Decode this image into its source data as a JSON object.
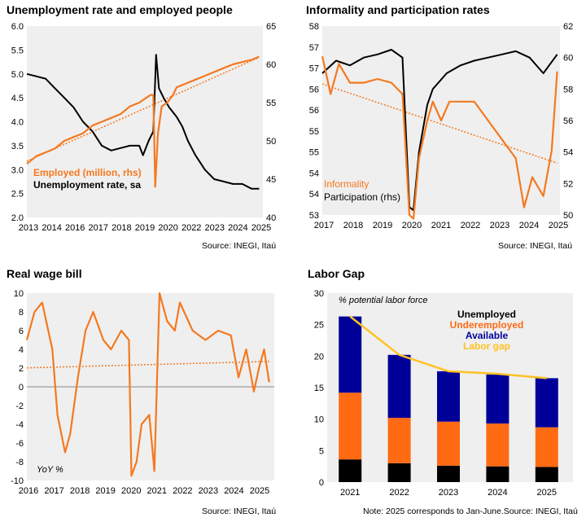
{
  "panels": {
    "p1": {
      "title": "Unemployment  rate and employed people",
      "source": "Source: INEGI, Itaú"
    },
    "p2": {
      "title": "Informality and participation rates",
      "source": "Source: INEGI, Itaú"
    },
    "p3": {
      "title": "Real wage bill",
      "source": "Source: INEGI, Itaú"
    },
    "p4": {
      "title": "Labor Gap",
      "source": "Note: 2025 corresponds to Jan-June.Source: INEGI, Itaú"
    }
  },
  "chart_data": [
    {
      "type": "line",
      "title": "Unemployment  rate and employed people",
      "x_tick_labels": [
        "2013",
        "2014",
        "2016",
        "2017",
        "2018",
        "2019",
        "2020",
        "2022",
        "2023",
        "2024",
        "2025"
      ],
      "ylim": [
        2.0,
        6.0
      ],
      "y_ticks": [
        "2.0",
        "2.5",
        "3.0",
        "3.5",
        "4.0",
        "4.5",
        "5.0",
        "5.5",
        "6.0"
      ],
      "y2lim": [
        40,
        65
      ],
      "y2_ticks": [
        "40",
        "45",
        "50",
        "55",
        "60",
        "65"
      ],
      "legend": [
        "Employed (million, rhs)",
        "Unemployment rate, sa"
      ],
      "colors": {
        "employed": "#F47920",
        "unemployment": "#000000"
      },
      "series": [
        {
          "name": "Employed (million, rhs)",
          "axis": "rhs",
          "trend": true,
          "x": [
            2013,
            2013.5,
            2014,
            2014.5,
            2015,
            2015.5,
            2016,
            2016.5,
            2017,
            2017.5,
            2018,
            2018.5,
            2019,
            2019.3,
            2019.6,
            2019.75,
            2019.85,
            2020,
            2020.2,
            2020.5,
            2020.8,
            2021,
            2021.5,
            2022,
            2022.5,
            2023,
            2023.5,
            2024,
            2024.5,
            2025,
            2025.4
          ],
          "values": [
            47,
            48,
            48.5,
            49,
            50,
            50.5,
            51,
            52,
            52.5,
            53,
            53.5,
            54.5,
            55,
            55.5,
            56,
            56,
            44,
            51,
            54.5,
            55,
            56,
            57,
            57.5,
            58,
            58.5,
            59,
            59.5,
            60,
            60.3,
            60.6,
            61
          ]
        },
        {
          "name": "Unemployment rate, sa",
          "axis": "lhs",
          "x": [
            2013,
            2013.5,
            2014,
            2014.5,
            2015,
            2015.5,
            2016,
            2016.5,
            2017,
            2017.5,
            2018,
            2018.5,
            2019,
            2019.2,
            2019.5,
            2019.75,
            2019.9,
            2020.05,
            2020.3,
            2020.6,
            2021,
            2021.3,
            2021.6,
            2022,
            2022.5,
            2023,
            2023.5,
            2024,
            2024.5,
            2025,
            2025.4
          ],
          "values": [
            5.0,
            4.95,
            4.9,
            4.7,
            4.5,
            4.3,
            4.0,
            3.8,
            3.5,
            3.4,
            3.45,
            3.5,
            3.5,
            3.3,
            3.6,
            3.8,
            5.4,
            4.7,
            4.5,
            4.3,
            4.1,
            3.9,
            3.6,
            3.3,
            3.0,
            2.8,
            2.75,
            2.7,
            2.7,
            2.6,
            2.6
          ]
        }
      ]
    },
    {
      "type": "line",
      "title": "Informality and participation rates",
      "x_tick_labels": [
        "2017",
        "2018",
        "2019",
        "2020",
        "2021",
        "2022",
        "2023",
        "2024",
        "2025"
      ],
      "ylim": [
        53,
        58
      ],
      "y_ticks": [
        "53",
        "54",
        "54",
        "55",
        "55",
        "56",
        "56",
        "57",
        "57",
        "58"
      ],
      "y2lim": [
        50,
        62
      ],
      "y2_ticks": [
        "50",
        "52",
        "54",
        "56",
        "58",
        "60",
        "62"
      ],
      "legend": [
        "Informality",
        "Participation (rhs)"
      ],
      "colors": {
        "informality": "#F47920",
        "participation": "#000000"
      },
      "series": [
        {
          "name": "Informality",
          "axis": "lhs",
          "trend": true,
          "x": [
            2017,
            2017.3,
            2017.6,
            2018,
            2018.5,
            2019,
            2019.5,
            2019.9,
            2020.15,
            2020.3,
            2020.5,
            2020.8,
            2021,
            2021.3,
            2021.6,
            2022,
            2022.5,
            2023,
            2023.5,
            2024,
            2024.3,
            2024.6,
            2025,
            2025.3,
            2025.5
          ],
          "values": [
            57.2,
            56.2,
            57.0,
            56.5,
            56.5,
            56.6,
            56.5,
            56.2,
            53.0,
            52.9,
            54.5,
            55.5,
            56.0,
            55.5,
            56.0,
            56.0,
            56.0,
            55.5,
            55.0,
            54.5,
            53.2,
            54.0,
            53.5,
            54.7,
            56.8
          ]
        },
        {
          "name": "Participation (rhs)",
          "axis": "rhs",
          "x": [
            2017,
            2017.5,
            2018,
            2018.5,
            2019,
            2019.5,
            2019.9,
            2020.15,
            2020.3,
            2020.5,
            2020.8,
            2021,
            2021.5,
            2022,
            2022.5,
            2023,
            2023.5,
            2024,
            2024.5,
            2025,
            2025.5
          ],
          "values": [
            59,
            59.8,
            59.5,
            60,
            60.2,
            60.5,
            60,
            50.5,
            50.3,
            54,
            57,
            58,
            59,
            59.5,
            59.8,
            60,
            60.2,
            60.4,
            60,
            59,
            60.2
          ]
        }
      ]
    },
    {
      "type": "line",
      "title": "Real wage bill",
      "x_tick_labels": [
        "2016",
        "2017",
        "2018",
        "2019",
        "2020",
        "2021",
        "2022",
        "2023",
        "2024",
        "2025"
      ],
      "ylim": [
        -10,
        10
      ],
      "y_ticks": [
        "-10",
        "-8",
        "-6",
        "-4",
        "-2",
        "0",
        "2",
        "4",
        "6",
        "8",
        "10"
      ],
      "annotation": "YoY %",
      "colors": {
        "line": "#F47920"
      },
      "series": [
        {
          "name": "",
          "trend": true,
          "x": [
            2016,
            2016.3,
            2016.6,
            2017,
            2017.2,
            2017.5,
            2017.7,
            2018,
            2018.3,
            2018.6,
            2019,
            2019.3,
            2019.7,
            2020,
            2020.1,
            2020.3,
            2020.5,
            2020.8,
            2021,
            2021.2,
            2021.5,
            2021.8,
            2022,
            2022.5,
            2023,
            2023.5,
            2024,
            2024.3,
            2024.6,
            2024.9,
            2025.1,
            2025.3,
            2025.5
          ],
          "values": [
            5,
            8,
            9,
            4,
            -3,
            -7,
            -5,
            1,
            6,
            8,
            5,
            4,
            6,
            5,
            -9.5,
            -8,
            -4,
            -3,
            -9,
            10,
            7,
            6,
            9,
            6,
            5,
            6,
            5.5,
            1,
            4,
            -0.5,
            2,
            4,
            0.5
          ]
        }
      ]
    },
    {
      "type": "bar",
      "title": "Labor Gap",
      "subtitle": "% potential labor force",
      "categories": [
        "2021",
        "2022",
        "2023",
        "2024",
        "2025"
      ],
      "ylim": [
        0,
        30
      ],
      "y_ticks": [
        "0",
        "5",
        "10",
        "15",
        "20",
        "25",
        "30"
      ],
      "colors": {
        "Unemployed": "#000000",
        "Underemployed": "#FF6A13",
        "Available": "#000099",
        "Labor gap": "#FFC222"
      },
      "series": [
        {
          "name": "Unemployed",
          "values": [
            3.6,
            3.0,
            2.6,
            2.5,
            2.4
          ]
        },
        {
          "name": "Underemployed",
          "values": [
            10.6,
            7.2,
            7.0,
            6.8,
            6.3
          ]
        },
        {
          "name": "Available",
          "values": [
            12.1,
            10.0,
            8.0,
            7.8,
            7.8
          ]
        },
        {
          "name": "Labor gap",
          "type": "line",
          "values": [
            26.3,
            20.2,
            17.6,
            17.2,
            16.5
          ]
        }
      ]
    }
  ]
}
